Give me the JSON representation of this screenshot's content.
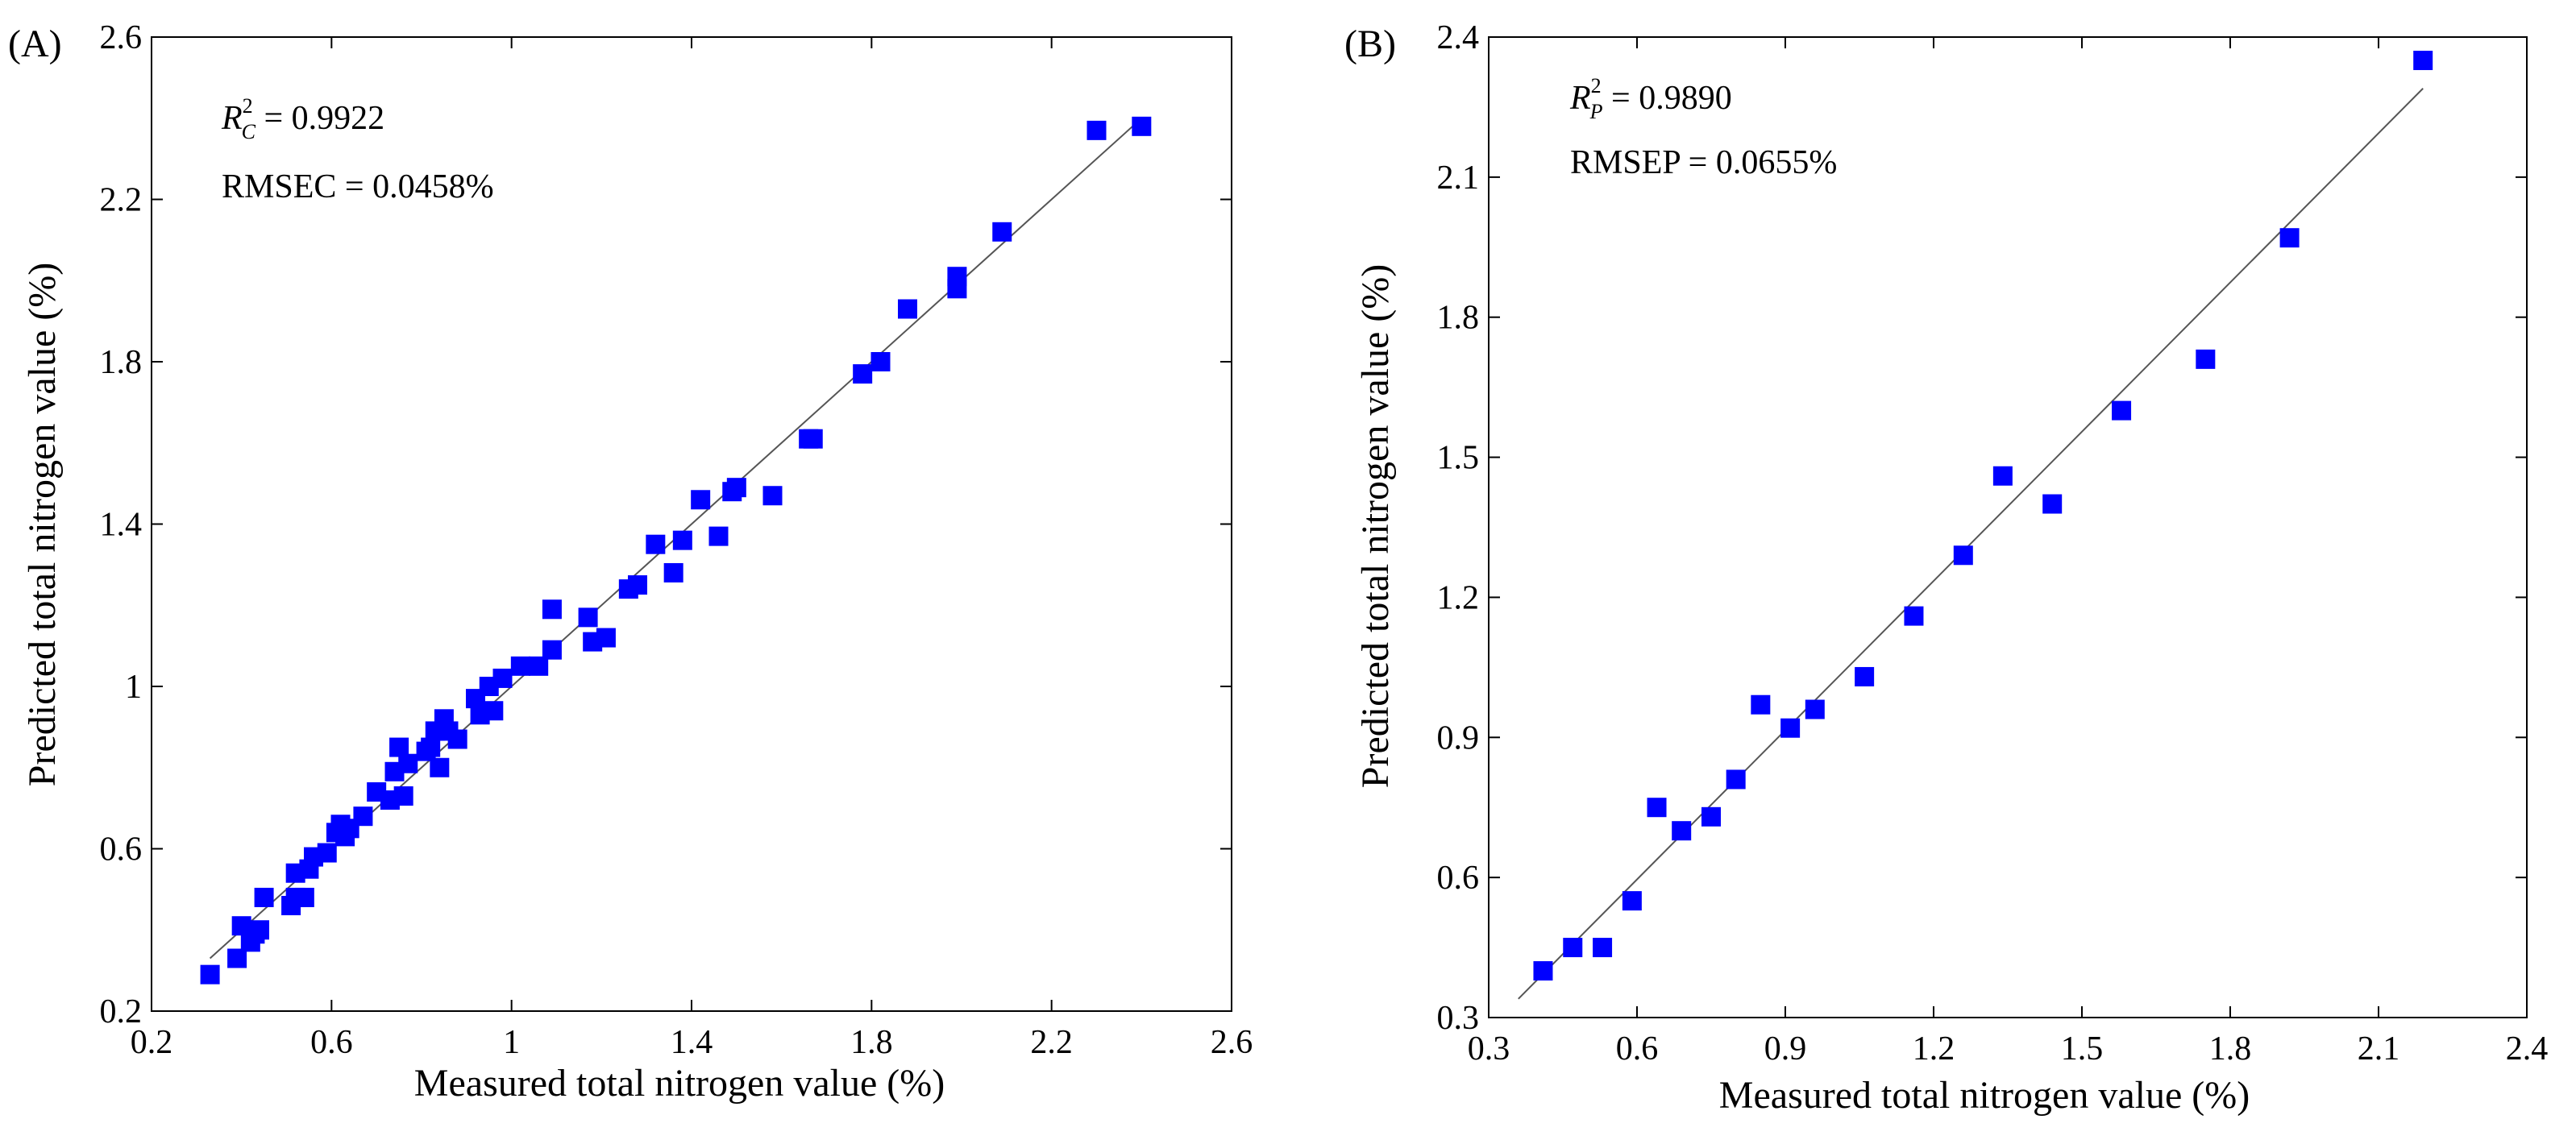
{
  "chart_data": [
    {
      "type": "scatter",
      "panel_label": "(A)",
      "xlabel": "Measured total nitrogen value (%)",
      "ylabel": "Predicted total nitrogen value (%)",
      "xlim": [
        0.2,
        2.6
      ],
      "ylim": [
        0.2,
        2.6
      ],
      "xticks": [
        "0.2",
        "0.6",
        "1",
        "1.4",
        "1.8",
        "2.2",
        "2.6"
      ],
      "yticks": [
        "0.2",
        "0.6",
        "1",
        "1.4",
        "1.8",
        "2.2",
        "2.6"
      ],
      "annotation": {
        "r2_symbol": "R",
        "r2_sup": "2",
        "r2_sub": "C",
        "r2_value": " = 0.9922",
        "rmse": "RMSEC = 0.0458%"
      },
      "fit_line": {
        "x": [
          0.33,
          2.4
        ],
        "y": [
          0.33,
          2.4
        ]
      },
      "grid": false,
      "marker_color": "#0000FF",
      "points": [
        [
          0.33,
          0.29
        ],
        [
          0.39,
          0.33
        ],
        [
          0.4,
          0.41
        ],
        [
          0.42,
          0.37
        ],
        [
          0.43,
          0.39
        ],
        [
          0.44,
          0.4
        ],
        [
          0.45,
          0.48
        ],
        [
          0.51,
          0.46
        ],
        [
          0.52,
          0.48
        ],
        [
          0.52,
          0.54
        ],
        [
          0.54,
          0.48
        ],
        [
          0.55,
          0.55
        ],
        [
          0.56,
          0.58
        ],
        [
          0.59,
          0.59
        ],
        [
          0.61,
          0.64
        ],
        [
          0.62,
          0.66
        ],
        [
          0.63,
          0.63
        ],
        [
          0.64,
          0.65
        ],
        [
          0.67,
          0.68
        ],
        [
          0.7,
          0.74
        ],
        [
          0.73,
          0.72
        ],
        [
          0.74,
          0.79
        ],
        [
          0.75,
          0.85
        ],
        [
          0.76,
          0.73
        ],
        [
          0.77,
          0.81
        ],
        [
          0.81,
          0.84
        ],
        [
          0.82,
          0.85
        ],
        [
          0.83,
          0.89
        ],
        [
          0.84,
          0.8
        ],
        [
          0.85,
          0.92
        ],
        [
          0.86,
          0.89
        ],
        [
          0.88,
          0.87
        ],
        [
          0.92,
          0.97
        ],
        [
          0.93,
          0.93
        ],
        [
          0.95,
          1.0
        ],
        [
          0.96,
          0.94
        ],
        [
          0.98,
          1.02
        ],
        [
          1.02,
          1.05
        ],
        [
          1.06,
          1.05
        ],
        [
          1.09,
          1.09
        ],
        [
          1.09,
          1.19
        ],
        [
          1.17,
          1.17
        ],
        [
          1.18,
          1.11
        ],
        [
          1.21,
          1.12
        ],
        [
          1.26,
          1.24
        ],
        [
          1.28,
          1.25
        ],
        [
          1.32,
          1.35
        ],
        [
          1.36,
          1.28
        ],
        [
          1.38,
          1.36
        ],
        [
          1.42,
          1.46
        ],
        [
          1.46,
          1.37
        ],
        [
          1.49,
          1.48
        ],
        [
          1.5,
          1.49
        ],
        [
          1.58,
          1.47
        ],
        [
          1.66,
          1.61
        ],
        [
          1.67,
          1.61
        ],
        [
          1.78,
          1.77
        ],
        [
          1.82,
          1.8
        ],
        [
          1.88,
          1.93
        ],
        [
          1.99,
          1.98
        ],
        [
          1.99,
          2.01
        ],
        [
          2.09,
          2.12
        ],
        [
          2.3,
          2.37
        ],
        [
          2.4,
          2.38
        ]
      ]
    },
    {
      "type": "scatter",
      "panel_label": "(B)",
      "xlabel": "Measured total nitrogen value (%)",
      "ylabel": "Predicted total nitrogen value (%)",
      "xlim": [
        0.3,
        2.4
      ],
      "ylim": [
        0.3,
        2.4
      ],
      "xticks": [
        "0.3",
        "0.6",
        "0.9",
        "1.2",
        "1.5",
        "1.8",
        "2.1",
        "2.4"
      ],
      "yticks": [
        "0.3",
        "0.6",
        "0.9",
        "1.2",
        "1.5",
        "1.8",
        "2.1",
        "2.4"
      ],
      "annotation": {
        "r2_symbol": "R",
        "r2_sup": "2",
        "r2_sub": "P",
        "r2_value": " = 0.9890",
        "rmse": "RMSEP = 0.0655%"
      },
      "fit_line": {
        "x": [
          0.36,
          2.19
        ],
        "y": [
          0.34,
          2.29
        ]
      },
      "grid": false,
      "marker_color": "#0000FF",
      "points": [
        [
          0.41,
          0.4
        ],
        [
          0.47,
          0.45
        ],
        [
          0.53,
          0.45
        ],
        [
          0.59,
          0.55
        ],
        [
          0.64,
          0.75
        ],
        [
          0.69,
          0.7
        ],
        [
          0.75,
          0.73
        ],
        [
          0.8,
          0.81
        ],
        [
          0.85,
          0.97
        ],
        [
          0.91,
          0.92
        ],
        [
          0.96,
          0.96
        ],
        [
          1.06,
          1.03
        ],
        [
          1.16,
          1.16
        ],
        [
          1.26,
          1.29
        ],
        [
          1.34,
          1.46
        ],
        [
          1.44,
          1.4
        ],
        [
          1.58,
          1.6
        ],
        [
          1.75,
          1.71
        ],
        [
          1.92,
          1.97
        ],
        [
          2.19,
          2.35
        ]
      ]
    }
  ]
}
